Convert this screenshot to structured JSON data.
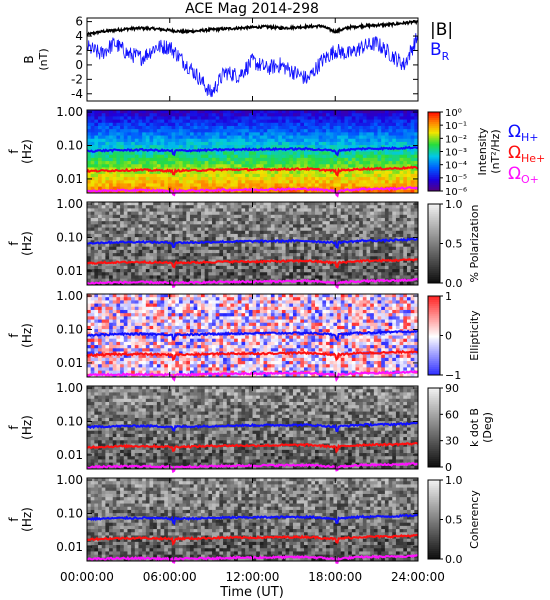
{
  "chart_data": {
    "type": "line",
    "title": "ACE Mag 2014-298",
    "time_axis": {
      "xlabel": "Time (UT)",
      "ticks": [
        "00:00:00",
        "06:00:00",
        "12:00:00",
        "18:00:00",
        "24:00:00"
      ],
      "xlim_hours": [
        0,
        24
      ]
    },
    "panels": [
      {
        "kind": "timeseries",
        "ylabel": "B",
        "yunit": "(nT)",
        "ylim": [
          -5,
          6.5
        ],
        "yticks": [
          "6",
          "4",
          "2",
          "0",
          "-2",
          "-4"
        ],
        "series": [
          {
            "name": "|B|",
            "color": "#000000",
            "x": [
              0,
              1,
              2,
              3,
              4,
              5,
              6,
              7,
              8,
              9,
              10,
              11,
              12,
              13,
              14,
              15,
              16,
              17,
              18,
              19,
              20,
              21,
              22,
              23,
              24
            ],
            "y": [
              4.2,
              4.6,
              4.8,
              5.0,
              5.1,
              5.0,
              4.8,
              4.6,
              4.7,
              4.9,
              5.0,
              5.1,
              5.2,
              5.3,
              5.1,
              5.2,
              5.3,
              5.4,
              4.6,
              5.2,
              5.4,
              5.5,
              5.6,
              5.8,
              6.0
            ]
          },
          {
            "name": "B_R",
            "color": "#1010ff",
            "x": [
              0,
              1,
              2,
              3,
              4,
              5,
              6,
              7,
              8,
              9,
              10,
              11,
              12,
              13,
              14,
              15,
              16,
              17,
              18,
              19,
              20,
              21,
              22,
              23,
              24
            ],
            "y": [
              2.5,
              1.5,
              3.0,
              1.5,
              1.0,
              2.5,
              2.5,
              0.5,
              -1.5,
              -4.0,
              -1.0,
              -1.5,
              0.5,
              -0.5,
              0.0,
              -1.0,
              -2.0,
              0.5,
              2.0,
              1.5,
              2.5,
              3.0,
              1.5,
              0.0,
              4.0
            ]
          }
        ],
        "legend": [
          "|B|",
          "B"
        ],
        "legend_sub": [
          "",
          "R"
        ]
      },
      {
        "kind": "spectrogram",
        "quantity": "Intensity",
        "ylabel": "f",
        "yunit": "(Hz)",
        "yticks": [
          "1.00",
          "0.10",
          "0.01"
        ],
        "colorbar": {
          "scale": "log",
          "label": "Intensity",
          "unit": "(nT²/Hz)",
          "ticks": [
            "10⁰",
            "10⁻¹",
            "10⁻²",
            "10⁻³",
            "10⁻⁴",
            "10⁻⁵",
            "10⁻⁶"
          ]
        },
        "legend": [
          {
            "label": "Ω",
            "sub": "H+",
            "color": "#1010ff"
          },
          {
            "label": "Ω",
            "sub": "He+",
            "color": "#ff1010"
          },
          {
            "label": "Ω",
            "sub": "O+",
            "color": "#ff10ff"
          }
        ]
      },
      {
        "kind": "spectrogram",
        "quantity": "% Polarization",
        "ylabel": "f",
        "yunit": "(Hz)",
        "yticks": [
          "1.00",
          "0.10",
          "0.01"
        ],
        "colorbar": {
          "label": "% Polarization",
          "ticks": [
            "1.0",
            "0.5",
            "0.0"
          ]
        }
      },
      {
        "kind": "spectrogram",
        "quantity": "Ellipticity",
        "ylabel": "f",
        "yunit": "(Hz)",
        "yticks": [
          "1.00",
          "0.10",
          "0.01"
        ],
        "colorbar": {
          "label": "Ellipticity",
          "ticks": [
            "1",
            "0",
            "−1"
          ]
        }
      },
      {
        "kind": "spectrogram",
        "quantity": "k dot B",
        "ylabel": "f",
        "yunit": "(Hz)",
        "yticks": [
          "1.00",
          "0.10",
          "0.01"
        ],
        "colorbar": {
          "label": "k dot B",
          "unit": "(Deg)",
          "ticks": [
            "90",
            "60",
            "30",
            "0"
          ]
        }
      },
      {
        "kind": "spectrogram",
        "quantity": "Coherency",
        "ylabel": "f",
        "yunit": "(Hz)",
        "yticks": [
          "1.00",
          "0.10",
          "0.01"
        ],
        "colorbar": {
          "label": "Coherency",
          "ticks": [
            "1.0",
            "0.5",
            "0.0"
          ]
        }
      }
    ],
    "gyrofrequency_lines_hz": [
      {
        "name": "Ω H+",
        "color": "#1010ff",
        "x": [
          0,
          2,
          4,
          6,
          8,
          10,
          12,
          14,
          16,
          18,
          20,
          22,
          24
        ],
        "y": [
          0.068,
          0.072,
          0.074,
          0.07,
          0.071,
          0.075,
          0.077,
          0.078,
          0.079,
          0.07,
          0.08,
          0.082,
          0.088
        ]
      },
      {
        "name": "Ω He+",
        "color": "#ff1010",
        "x": [
          0,
          2,
          4,
          6,
          8,
          10,
          12,
          14,
          16,
          18,
          20,
          22,
          24
        ],
        "y": [
          0.017,
          0.018,
          0.0185,
          0.0175,
          0.018,
          0.019,
          0.019,
          0.0195,
          0.02,
          0.0175,
          0.02,
          0.0205,
          0.022
        ]
      },
      {
        "name": "Ω O+",
        "color": "#ff10ff",
        "x": [
          0,
          2,
          4,
          6,
          8,
          10,
          12,
          14,
          16,
          18,
          20,
          22,
          24
        ],
        "y": [
          0.0043,
          0.0045,
          0.0046,
          0.0044,
          0.0045,
          0.0047,
          0.0048,
          0.0049,
          0.005,
          0.0044,
          0.005,
          0.0051,
          0.0055
        ]
      }
    ]
  }
}
